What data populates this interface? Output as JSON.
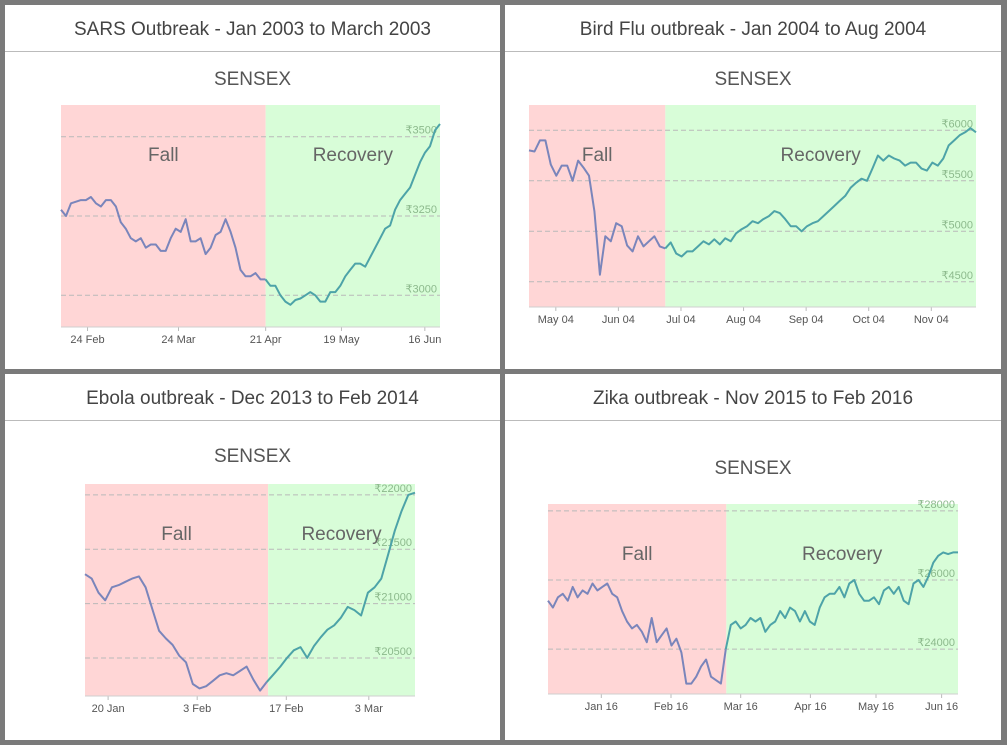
{
  "panels": [
    {
      "title": "SARS Outbreak - Jan 2003 to March 2003"
    },
    {
      "title": "Bird Flu outbreak - Jan 2004 to Aug 2004"
    },
    {
      "title": "Ebola outbreak - Dec 2013 to Feb 2014"
    },
    {
      "title": "Zika outbreak - Nov 2015 to Feb 2016"
    }
  ],
  "colors": {
    "fall": "#ffd6d6",
    "recovery": "#d8fdd8",
    "line_fall": "#7a85bb",
    "line_recovery": "#4da3a8",
    "grid": "#b9b9b9",
    "tick_text": "#777777",
    "axis_text": "#555555"
  },
  "chart_data": [
    {
      "type": "line",
      "subtitle": "SENSEX",
      "regions": [
        {
          "label": "Fall",
          "x_end": 0.54
        },
        {
          "label": "Recovery"
        }
      ],
      "y_ticks": [
        {
          "value": 3500,
          "label": "₹3500"
        },
        {
          "value": 3250,
          "label": "₹3250"
        },
        {
          "value": 3000,
          "label": "₹3000"
        }
      ],
      "ylim": [
        2900,
        3600
      ],
      "x_labels": [
        "24 Feb",
        "24 Mar",
        "21 Apr",
        "19 May",
        "16 Jun"
      ],
      "x_label_pos": [
        0.07,
        0.31,
        0.54,
        0.74,
        0.96
      ],
      "values": [
        3270,
        3250,
        3290,
        3295,
        3300,
        3300,
        3310,
        3290,
        3280,
        3300,
        3300,
        3280,
        3230,
        3210,
        3180,
        3170,
        3180,
        3150,
        3160,
        3160,
        3140,
        3140,
        3180,
        3210,
        3200,
        3240,
        3170,
        3170,
        3180,
        3130,
        3150,
        3190,
        3200,
        3240,
        3200,
        3150,
        3080,
        3060,
        3060,
        3070,
        3050,
        3050,
        3030,
        3030,
        3000,
        2980,
        2970,
        2985,
        2990,
        3000,
        3010,
        3000,
        2980,
        2980,
        3010,
        3010,
        3030,
        3060,
        3080,
        3100,
        3100,
        3090,
        3120,
        3150,
        3180,
        3210,
        3220,
        3270,
        3300,
        3320,
        3340,
        3380,
        3420,
        3450,
        3470,
        3520,
        3540
      ]
    },
    {
      "type": "line",
      "subtitle": "SENSEX",
      "regions": [
        {
          "label": "Fall",
          "x_end": 0.305
        },
        {
          "label": "Recovery"
        }
      ],
      "y_ticks": [
        {
          "value": 6000,
          "label": "₹6000"
        },
        {
          "value": 5500,
          "label": "₹5500"
        },
        {
          "value": 5000,
          "label": "₹5000"
        },
        {
          "value": 4500,
          "label": "₹4500"
        }
      ],
      "ylim": [
        4250,
        6250
      ],
      "x_labels": [
        "May 04",
        "Jun 04",
        "Jul 04",
        "Aug 04",
        "Sep 04",
        "Oct 04",
        "Nov 04"
      ],
      "x_label_pos": [
        0.06,
        0.2,
        0.34,
        0.48,
        0.62,
        0.76,
        0.9
      ],
      "values": [
        5800,
        5790,
        5900,
        5900,
        5660,
        5550,
        5650,
        5650,
        5500,
        5700,
        5630,
        5550,
        5200,
        4570,
        4950,
        4900,
        5080,
        5050,
        4860,
        4800,
        4950,
        4850,
        4900,
        4950,
        4850,
        4830,
        4890,
        4780,
        4750,
        4800,
        4800,
        4850,
        4900,
        4870,
        4920,
        4870,
        4930,
        4900,
        4980,
        5020,
        5050,
        5100,
        5080,
        5120,
        5150,
        5200,
        5180,
        5120,
        5050,
        5050,
        5000,
        5050,
        5080,
        5100,
        5150,
        5200,
        5250,
        5300,
        5350,
        5430,
        5480,
        5520,
        5500,
        5620,
        5750,
        5700,
        5750,
        5720,
        5700,
        5650,
        5680,
        5680,
        5620,
        5600,
        5680,
        5650,
        5720,
        5850,
        5900,
        5950,
        5980,
        6020,
        5980
      ]
    },
    {
      "type": "line",
      "subtitle": "SENSEX",
      "regions": [
        {
          "label": "Fall",
          "x_end": 0.555
        },
        {
          "label": "Recovery"
        }
      ],
      "y_ticks": [
        {
          "value": 22000,
          "label": "₹22000"
        },
        {
          "value": 21500,
          "label": "₹21500"
        },
        {
          "value": 21000,
          "label": "₹21000"
        },
        {
          "value": 20500,
          "label": "₹20500"
        }
      ],
      "ylim": [
        20150,
        22100
      ],
      "x_labels": [
        "20 Jan",
        "3 Feb",
        "17 Feb",
        "3 Mar"
      ],
      "x_label_pos": [
        0.07,
        0.34,
        0.61,
        0.86
      ],
      "values": [
        21270,
        21230,
        21100,
        21030,
        21150,
        21170,
        21200,
        21230,
        21250,
        21150,
        20950,
        20750,
        20680,
        20620,
        20520,
        20460,
        20260,
        20220,
        20240,
        20290,
        20340,
        20360,
        20340,
        20380,
        20420,
        20300,
        20200,
        20280,
        20350,
        20420,
        20500,
        20570,
        20600,
        20500,
        20610,
        20690,
        20760,
        20800,
        20870,
        20970,
        20940,
        20890,
        21100,
        21150,
        21230,
        21450,
        21670,
        21850,
        22000,
        22020
      ]
    },
    {
      "type": "line",
      "subtitle": "SENSEX",
      "regions": [
        {
          "label": "Fall",
          "x_end": 0.435
        },
        {
          "label": "Recovery"
        }
      ],
      "y_ticks": [
        {
          "value": 28000,
          "label": "₹28000"
        },
        {
          "value": 26000,
          "label": "₹26000"
        },
        {
          "value": 24000,
          "label": "₹24000"
        }
      ],
      "ylim": [
        22700,
        28200
      ],
      "x_labels": [
        "Jan 16",
        "Feb 16",
        "Mar 16",
        "Apr 16",
        "May 16",
        "Jun 16"
      ],
      "x_label_pos": [
        0.13,
        0.3,
        0.47,
        0.64,
        0.8,
        0.96
      ],
      "values": [
        25400,
        25200,
        25500,
        25600,
        25400,
        25800,
        25500,
        25700,
        25600,
        25900,
        25700,
        25800,
        25900,
        25600,
        25500,
        25100,
        24800,
        24600,
        24700,
        24500,
        24200,
        24900,
        24200,
        24400,
        24600,
        24100,
        24300,
        23900,
        23000,
        23000,
        23200,
        23500,
        23700,
        23200,
        23100,
        23000,
        24000,
        24700,
        24800,
        24600,
        24700,
        24900,
        24800,
        24900,
        24500,
        24700,
        24800,
        25100,
        24900,
        25200,
        25100,
        24800,
        25100,
        24800,
        24700,
        25200,
        25500,
        25600,
        25600,
        25800,
        25500,
        25900,
        26000,
        25600,
        25400,
        25400,
        25500,
        25300,
        25700,
        25800,
        25600,
        25800,
        25400,
        25300,
        25900,
        26000,
        25800,
        26100,
        26500,
        26700,
        26800,
        26750,
        26800,
        26800
      ]
    }
  ]
}
